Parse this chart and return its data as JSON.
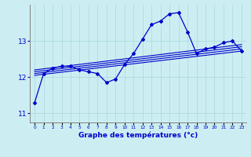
{
  "xlabel": "Graphe des températures (°c)",
  "background_color": "#cceef2",
  "line_color": "#0000cc",
  "x_ticks": [
    0,
    1,
    2,
    3,
    4,
    5,
    6,
    7,
    8,
    9,
    10,
    11,
    12,
    13,
    14,
    15,
    16,
    17,
    18,
    19,
    20,
    21,
    22,
    23
  ],
  "ylim": [
    10.75,
    14.0
  ],
  "yticks": [
    11,
    12,
    13
  ],
  "temp_data": {
    "x": [
      0,
      1,
      2,
      3,
      4,
      5,
      6,
      7,
      8,
      9,
      10,
      11,
      12,
      13,
      14,
      15,
      16,
      17,
      18,
      19,
      20,
      21,
      22,
      23
    ],
    "y": [
      11.3,
      12.1,
      12.25,
      12.3,
      12.3,
      12.2,
      12.15,
      12.1,
      11.85,
      11.95,
      12.35,
      12.65,
      13.05,
      13.45,
      13.55,
      13.75,
      13.78,
      13.25,
      12.65,
      12.78,
      12.83,
      12.95,
      13.0,
      12.72
    ]
  },
  "trend_lines": [
    {
      "x": [
        0,
        23
      ],
      "y": [
        12.05,
        12.72
      ]
    },
    {
      "x": [
        0,
        23
      ],
      "y": [
        12.1,
        12.78
      ]
    },
    {
      "x": [
        0,
        23
      ],
      "y": [
        12.15,
        12.84
      ]
    },
    {
      "x": [
        0,
        23
      ],
      "y": [
        12.2,
        12.9
      ]
    }
  ]
}
